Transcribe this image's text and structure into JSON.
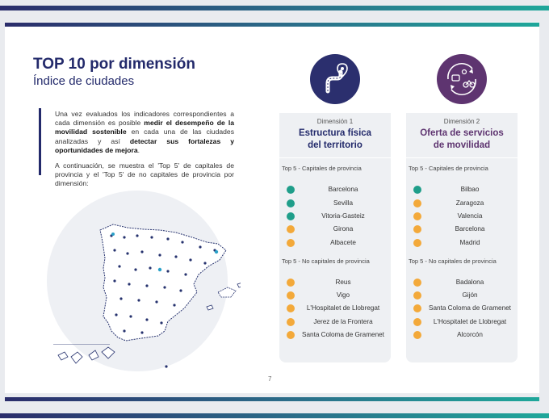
{
  "header": {
    "title": "TOP 10 por dimensión",
    "subtitle": "Índice de ciudades"
  },
  "intro": {
    "p1_a": "Una vez evaluados los indicadores correspondientes a cada dimensión es posible ",
    "p1_b": "medir el desempeño de la movilidad sostenible",
    "p1_c": " en cada una de las ciudades analizadas y así ",
    "p1_d": "detectar sus fortalezas y oportunidades de mejora",
    "p1_e": ".",
    "p2": "A continuación, se muestra el 'Top 5' de capitales de provincia y el 'Top 5' de no capitales de provincia por dimensión:"
  },
  "dimensions": [
    {
      "label": "Dimensión 1",
      "title_line1": "Estructura física",
      "title_line2": "del territorio",
      "color": "#2b2f6e",
      "icon": "road-pin-icon",
      "capitals_label": "Top 5 - Capitales de provincia",
      "capitals": [
        {
          "name": "Barcelona",
          "color": "#1f9e8a"
        },
        {
          "name": "Sevilla",
          "color": "#1f9e8a"
        },
        {
          "name": "Vitoria-Gasteiz",
          "color": "#1f9e8a"
        },
        {
          "name": "Girona",
          "color": "#f3a93a"
        },
        {
          "name": "Albacete",
          "color": "#f3a93a"
        }
      ],
      "noncapitals_label": "Top 5 - No capitales de provincia",
      "noncapitals": [
        {
          "name": "Reus",
          "color": "#f3a93a"
        },
        {
          "name": "Vigo",
          "color": "#f3a93a"
        },
        {
          "name": "L'Hospitalet de Llobregat",
          "color": "#f3a93a"
        },
        {
          "name": "Jerez de la Frontera",
          "color": "#f3a93a"
        },
        {
          "name": "Santa Coloma de Gramenet",
          "color": "#f3a93a"
        }
      ]
    },
    {
      "label": "Dimensión 2",
      "title_line1": "Oferta de servicios",
      "title_line2": "de movilidad",
      "color": "#5e3470",
      "icon": "mobility-services-icon",
      "capitals_label": "Top 5 - Capitales de provincia",
      "capitals": [
        {
          "name": "Bilbao",
          "color": "#1f9e8a"
        },
        {
          "name": "Zaragoza",
          "color": "#f3a93a"
        },
        {
          "name": "Valencia",
          "color": "#f3a93a"
        },
        {
          "name": "Barcelona",
          "color": "#f3a93a"
        },
        {
          "name": "Madrid",
          "color": "#f3a93a"
        }
      ],
      "noncapitals_label": "Top 5 - No capitales de provincia",
      "noncapitals": [
        {
          "name": "Badalona",
          "color": "#f3a93a"
        },
        {
          "name": "Gijón",
          "color": "#f3a93a"
        },
        {
          "name": "Santa Coloma de Gramenet",
          "color": "#f3a93a"
        },
        {
          "name": "L'Hospitalet de Llobregat",
          "color": "#f3a93a"
        },
        {
          "name": "Alcorcón",
          "color": "#f3a93a"
        }
      ]
    }
  ],
  "page_number": "7"
}
